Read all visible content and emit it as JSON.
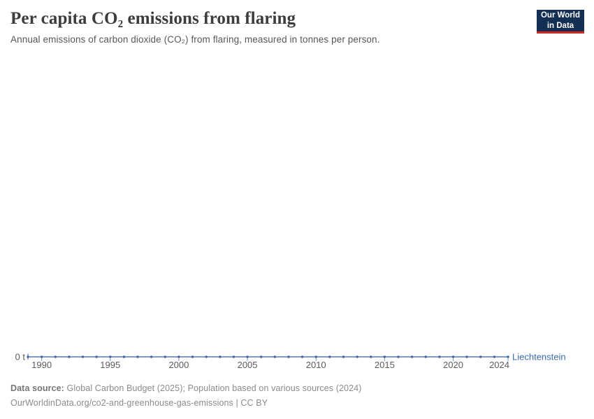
{
  "header": {
    "title": "Per capita CO₂ emissions from flaring",
    "subtitle": "Annual emissions of carbon dioxide (CO₂) from flaring, measured in tonnes per person.",
    "logo": {
      "line1": "Our World",
      "line2": "in Data"
    }
  },
  "chart_data": {
    "type": "line",
    "title": "Per capita CO₂ emissions from flaring",
    "unit": "tonnes per person",
    "entity_label": "Liechtenstein",
    "x": [
      1989,
      1990,
      1991,
      1992,
      1993,
      1994,
      1995,
      1996,
      1997,
      1998,
      1999,
      2000,
      2001,
      2002,
      2003,
      2004,
      2005,
      2006,
      2007,
      2008,
      2009,
      2010,
      2011,
      2012,
      2013,
      2014,
      2015,
      2016,
      2017,
      2018,
      2019,
      2020,
      2021,
      2022,
      2023,
      2024
    ],
    "series": [
      {
        "name": "Liechtenstein",
        "values": [
          0,
          0,
          0,
          0,
          0,
          0,
          0,
          0,
          0,
          0,
          0,
          0,
          0,
          0,
          0,
          0,
          0,
          0,
          0,
          0,
          0,
          0,
          0,
          0,
          0,
          0,
          0,
          0,
          0,
          0,
          0,
          0,
          0,
          0,
          0,
          0
        ]
      }
    ],
    "xticks": [
      1990,
      1995,
      2000,
      2005,
      2010,
      2015,
      2020,
      2024
    ],
    "ytick_label": "0 t",
    "ylim": [
      0,
      0
    ],
    "grid": false,
    "legend_position": "end-of-line",
    "colors": {
      "line": "#5878af",
      "marker": "#44659f",
      "tick": "#7b93bd",
      "axis_text": "#5b5b5b",
      "entity_text": "#3d6bac"
    }
  },
  "footer": {
    "datasource_label": "Data source:",
    "datasource_text": " Global Carbon Budget (2025); Population based on various sources (2024)",
    "link_line": "OurWorldinData.org/co2-and-greenhouse-gas-emissions | CC BY"
  }
}
